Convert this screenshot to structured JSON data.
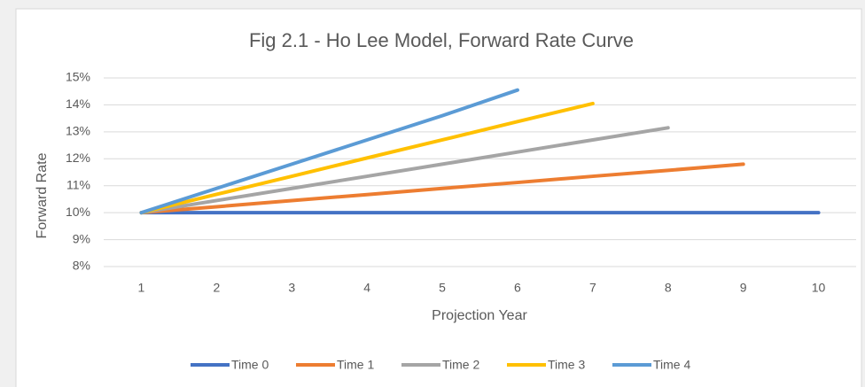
{
  "chart_data": {
    "type": "line",
    "title": "Fig 2.1 - Ho Lee Model, Forward Rate Curve",
    "x_label": "Projection Year",
    "y_label": "Forward Rate",
    "x": [
      1,
      2,
      3,
      4,
      5,
      6,
      7,
      8,
      9,
      10
    ],
    "xlim": [
      0.5,
      10.5
    ],
    "xticks": [
      1,
      2,
      3,
      4,
      5,
      6,
      7,
      8,
      9,
      10
    ],
    "ylim": [
      8,
      15
    ],
    "yticks": [
      {
        "value": 8,
        "label": "8%"
      },
      {
        "value": 9,
        "label": "9%"
      },
      {
        "value": 10,
        "label": "10%"
      },
      {
        "value": 11,
        "label": "11%"
      },
      {
        "value": 12,
        "label": "12%"
      },
      {
        "value": 13,
        "label": "13%"
      },
      {
        "value": 14,
        "label": "14%"
      },
      {
        "value": 15,
        "label": "15%"
      }
    ],
    "grid": true,
    "legend": "bottom",
    "series": [
      {
        "name": "Time 0",
        "color": "#4472c4",
        "values": [
          10,
          10,
          10,
          10,
          10,
          10,
          10,
          10,
          10,
          10
        ]
      },
      {
        "name": "Time 1",
        "color": "#ed7d31",
        "values": [
          10,
          10.22,
          10.45,
          10.67,
          10.9,
          11.12,
          11.35,
          11.57,
          11.8,
          null
        ]
      },
      {
        "name": "Time 2",
        "color": "#a5a5a5",
        "values": [
          10,
          10.45,
          10.9,
          11.35,
          11.8,
          12.25,
          12.7,
          13.15,
          null,
          null
        ]
      },
      {
        "name": "Time 3",
        "color": "#ffc000",
        "values": [
          10,
          10.68,
          11.35,
          12.03,
          12.7,
          13.38,
          14.05,
          null,
          null,
          null
        ]
      },
      {
        "name": "Time 4",
        "color": "#5b9bd5",
        "values": [
          10,
          10.9,
          11.8,
          12.7,
          13.6,
          14.55,
          null,
          null,
          null,
          null
        ]
      }
    ]
  }
}
